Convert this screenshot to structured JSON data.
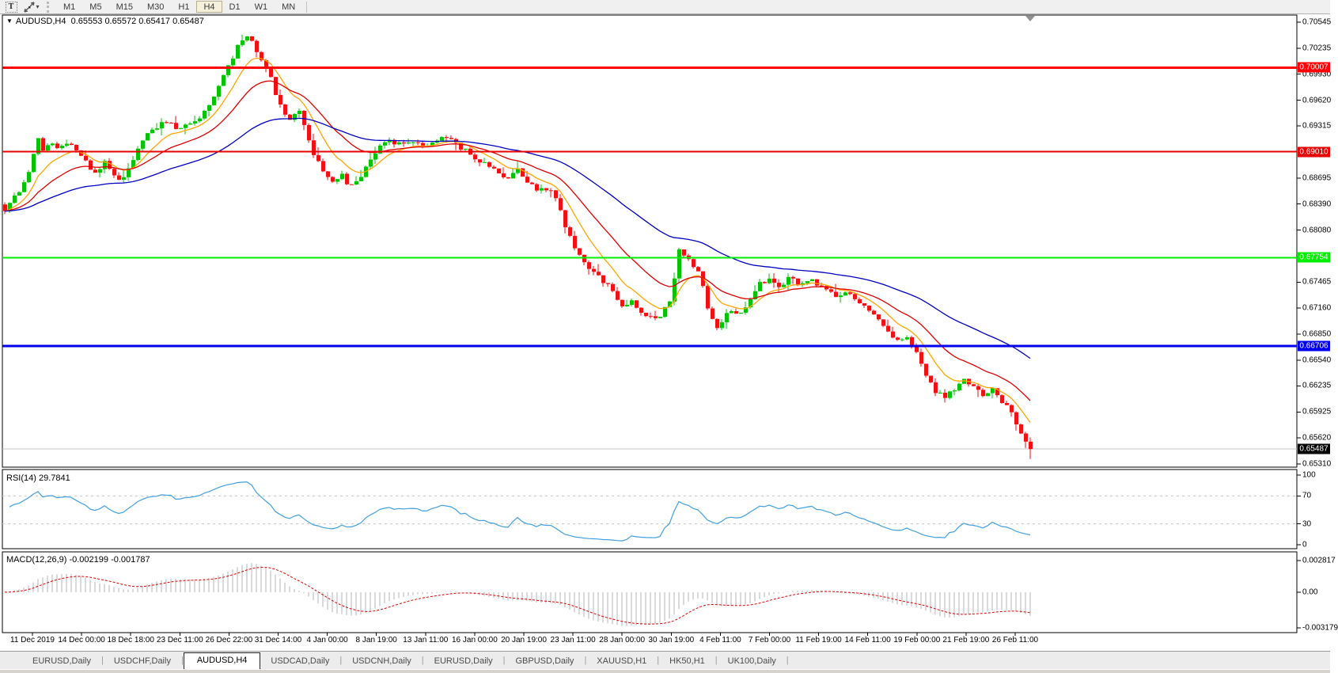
{
  "toolbar": {
    "text_tool": "T",
    "pointer_tool_caret": "▾",
    "timeframes": [
      {
        "label": "M1",
        "active": false
      },
      {
        "label": "M5",
        "active": false
      },
      {
        "label": "M15",
        "active": false
      },
      {
        "label": "M30",
        "active": false
      },
      {
        "label": "H1",
        "active": false
      },
      {
        "label": "H4",
        "active": true
      },
      {
        "label": "D1",
        "active": false
      },
      {
        "label": "W1",
        "active": false
      },
      {
        "label": "MN",
        "active": false
      }
    ]
  },
  "chart": {
    "collapse_triangle": "▼",
    "title": "AUDUSD,H4",
    "ohlc": "0.65553 0.65572 0.65417 0.65487"
  },
  "price_axis": {
    "ticks": [
      "0.70545",
      "0.70235",
      "0.69930",
      "0.69620",
      "0.69315",
      "0.68695",
      "0.68390",
      "0.68080",
      "0.67465",
      "0.67160",
      "0.66850",
      "0.66540",
      "0.66235",
      "0.65925",
      "0.65620",
      "0.65310"
    ]
  },
  "hlines": [
    {
      "label": "0.70007",
      "value": 0.70007,
      "color": "#ff0000",
      "width": 3,
      "text_color": "#ffffff"
    },
    {
      "label": "0.69010",
      "value": 0.6901,
      "color": "#e80000",
      "width": 2,
      "text_color": "#ffffff"
    },
    {
      "label": "0.67754",
      "value": 0.67754,
      "color": "#00ee00",
      "width": 2,
      "text_color": "#ffffff"
    },
    {
      "label": "0.66706",
      "value": 0.66706,
      "color": "#0000ee",
      "width": 3,
      "text_color": "#ffffff"
    }
  ],
  "current_price": {
    "label": "0.65487",
    "value": 0.65487
  },
  "rsi": {
    "title": "RSI(14) 29.7841",
    "levels": [
      "100",
      "70",
      "30",
      "0"
    ],
    "color": "#42a0e0"
  },
  "macd": {
    "title": "MACD(12,26,9) -0.002199 -0.001787",
    "axis": [
      "0.002817",
      "0.00",
      "-0.003179"
    ],
    "histogram_color": "#b4b4b4",
    "signal_color": "#e00000"
  },
  "time_axis": [
    "11 Dec 2019",
    "14 Dec 00:00",
    "18 Dec 18:00",
    "23 Dec 11:00",
    "26 Dec 22:00",
    "31 Dec 14:00",
    "4 Jan 00:00",
    "8 Jan 19:00",
    "13 Jan 11:00",
    "16 Jan 00:00",
    "20 Jan 19:00",
    "23 Jan 11:00",
    "28 Jan 00:00",
    "30 Jan 19:00",
    "4 Feb 11:00",
    "7 Feb 00:00",
    "11 Feb 19:00",
    "14 Feb 11:00",
    "19 Feb 00:00",
    "21 Feb 19:00",
    "26 Feb 11:00"
  ],
  "tabs": [
    "EURUSD,Daily",
    "USDCHF,Daily",
    "AUDUSD,H4",
    "USDCAD,Daily",
    "USDCNH,Daily",
    "EURUSD,Daily",
    "GBPUSD,Daily",
    "XAUUSD,H1",
    "HK50,H1",
    "UK100,Daily"
  ],
  "active_tab": "AUDUSD,H4",
  "colors": {
    "candle_up": "#00c400",
    "candle_down": "#ee1212",
    "ma_fast": "#ffa500",
    "ma_mid": "#e00000",
    "ma_slow": "#0000c2",
    "current_price_line": "#c4c4c4",
    "rsi_level_dash": "#c8c8c8",
    "shift_marker": "#909090"
  },
  "chart_data": {
    "type": "candlestick",
    "symbol": "AUDUSD",
    "timeframe": "H4",
    "bars": 217,
    "bar_spacing": 6,
    "price_range_top": 0.70545,
    "price_range_bottom": 0.6531,
    "last_close": 0.65487,
    "indicators": [
      {
        "name": "EMA",
        "period": 9,
        "color_key": "ma_fast"
      },
      {
        "name": "EMA",
        "period": 21,
        "color_key": "ma_mid"
      },
      {
        "name": "EMA",
        "period": 55,
        "color_key": "ma_slow"
      },
      {
        "name": "RSI",
        "period": 14,
        "last_value": 29.7841,
        "scale": [
          0,
          100
        ],
        "marked_levels": [
          70,
          30
        ]
      },
      {
        "name": "MACD",
        "params": [
          12,
          26,
          9
        ],
        "last_values": [
          -0.002199,
          -0.001787
        ],
        "scale": [
          -0.003179,
          0.002817
        ]
      }
    ],
    "price_waypoints": [
      [
        2,
        0.6825
      ],
      [
        10,
        0.684
      ],
      [
        20,
        0.685
      ],
      [
        30,
        0.6865
      ],
      [
        40,
        0.688
      ],
      [
        45,
        0.693
      ],
      [
        52,
        0.69
      ],
      [
        62,
        0.6912
      ],
      [
        75,
        0.6907
      ],
      [
        90,
        0.6909
      ],
      [
        105,
        0.6893
      ],
      [
        118,
        0.6877
      ],
      [
        132,
        0.6888
      ],
      [
        148,
        0.6866
      ],
      [
        163,
        0.688
      ],
      [
        180,
        0.6916
      ],
      [
        195,
        0.693
      ],
      [
        210,
        0.6936
      ],
      [
        225,
        0.6928
      ],
      [
        240,
        0.6936
      ],
      [
        255,
        0.6942
      ],
      [
        270,
        0.6968
      ],
      [
        285,
        0.6994
      ],
      [
        300,
        0.7026
      ],
      [
        311,
        0.704
      ],
      [
        322,
        0.7024
      ],
      [
        338,
        0.6998
      ],
      [
        352,
        0.696
      ],
      [
        365,
        0.694
      ],
      [
        378,
        0.695
      ],
      [
        392,
        0.6906
      ],
      [
        405,
        0.6882
      ],
      [
        418,
        0.6864
      ],
      [
        430,
        0.6875
      ],
      [
        442,
        0.686
      ],
      [
        455,
        0.687
      ],
      [
        468,
        0.6894
      ],
      [
        480,
        0.6908
      ],
      [
        492,
        0.6913
      ],
      [
        508,
        0.6908
      ],
      [
        522,
        0.6912
      ],
      [
        536,
        0.6906
      ],
      [
        550,
        0.6913
      ],
      [
        565,
        0.692
      ],
      [
        580,
        0.6907
      ],
      [
        596,
        0.6897
      ],
      [
        612,
        0.6887
      ],
      [
        628,
        0.6877
      ],
      [
        642,
        0.6868
      ],
      [
        654,
        0.6882
      ],
      [
        668,
        0.6864
      ],
      [
        682,
        0.6855
      ],
      [
        695,
        0.686
      ],
      [
        706,
        0.684
      ],
      [
        716,
        0.6806
      ],
      [
        726,
        0.6788
      ],
      [
        736,
        0.677
      ],
      [
        748,
        0.6757
      ],
      [
        760,
        0.675
      ],
      [
        772,
        0.6738
      ],
      [
        785,
        0.6716
      ],
      [
        798,
        0.6724
      ],
      [
        810,
        0.6712
      ],
      [
        822,
        0.6704
      ],
      [
        835,
        0.6707
      ],
      [
        847,
        0.6727
      ],
      [
        858,
        0.6786
      ],
      [
        870,
        0.6772
      ],
      [
        884,
        0.6757
      ],
      [
        897,
        0.6706
      ],
      [
        908,
        0.669
      ],
      [
        920,
        0.6714
      ],
      [
        934,
        0.6705
      ],
      [
        947,
        0.6726
      ],
      [
        960,
        0.6744
      ],
      [
        972,
        0.6751
      ],
      [
        985,
        0.6742
      ],
      [
        998,
        0.6752
      ],
      [
        1010,
        0.6744
      ],
      [
        1023,
        0.6751
      ],
      [
        1036,
        0.6742
      ],
      [
        1048,
        0.6735
      ],
      [
        1060,
        0.6728
      ],
      [
        1072,
        0.6733
      ],
      [
        1085,
        0.6723
      ],
      [
        1098,
        0.671
      ],
      [
        1110,
        0.6704
      ],
      [
        1122,
        0.6686
      ],
      [
        1134,
        0.6676
      ],
      [
        1146,
        0.6682
      ],
      [
        1158,
        0.6662
      ],
      [
        1170,
        0.6638
      ],
      [
        1182,
        0.6618
      ],
      [
        1194,
        0.661
      ],
      [
        1206,
        0.662
      ],
      [
        1218,
        0.6632
      ],
      [
        1230,
        0.6621
      ],
      [
        1242,
        0.6614
      ],
      [
        1254,
        0.6621
      ],
      [
        1266,
        0.6605
      ],
      [
        1278,
        0.6591
      ],
      [
        1290,
        0.6568
      ],
      [
        1299,
        0.65487
      ]
    ]
  }
}
